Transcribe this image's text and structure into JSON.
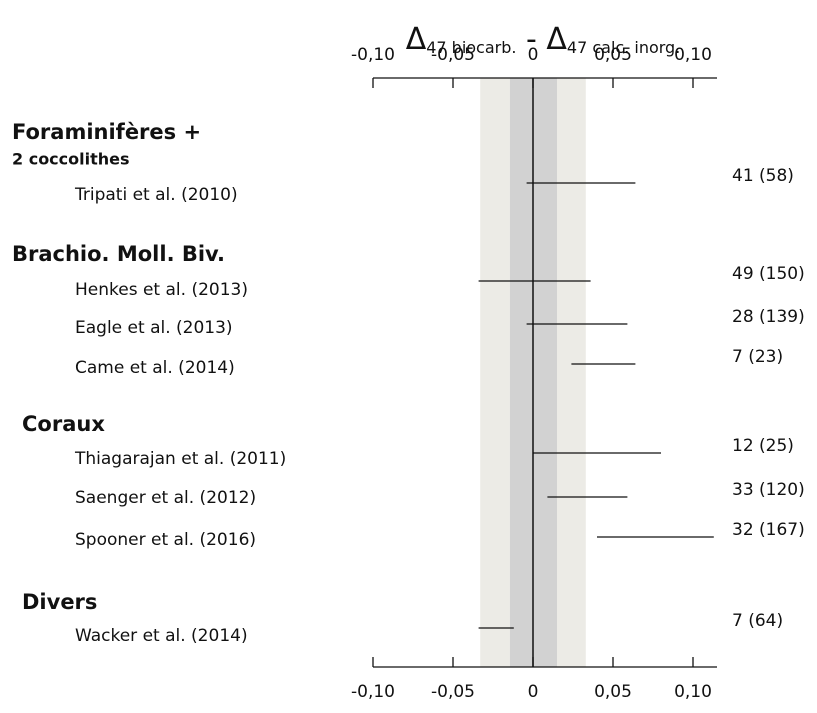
{
  "chart_data": {
    "type": "range",
    "title": {
      "symbol1": "Δ",
      "sub1": "47 biocarb.",
      "sep": " - ",
      "symbol2": "Δ",
      "sub2": "47 calc. inorg."
    },
    "xlim": [
      -0.1,
      0.115
    ],
    "xticks": [
      {
        "value": -0.1,
        "label": "-0,10"
      },
      {
        "value": -0.05,
        "label": "-0,05"
      },
      0,
      {
        "value": 0.05,
        "label": "0,05"
      },
      {
        "value": 0.1,
        "label": "0,10"
      }
    ],
    "bands": [
      {
        "range": [
          -0.033,
          0.033
        ],
        "color": "#ecebe6"
      },
      {
        "range": [
          -0.0144,
          0.015
        ],
        "color": "#d2d2d2"
      }
    ],
    "line_color": "#111111",
    "groups": [
      {
        "name": "Foraminifères +",
        "subname": "2 coccolithes",
        "studies": [
          {
            "label": "Tripati et al. (2010)",
            "low": -0.004,
            "high": 0.064,
            "n": "41 (58)"
          }
        ]
      },
      {
        "name": "Brachio. Moll. Biv.",
        "studies": [
          {
            "label": "Henkes et al. (2013)",
            "low": -0.034,
            "high": 0.036,
            "n": "49 (150)"
          },
          {
            "label": "Eagle et al. (2013)",
            "low": -0.004,
            "high": 0.059,
            "n": "28 (139)"
          },
          {
            "label": "Came et al. (2014)",
            "low": 0.024,
            "high": 0.064,
            "n": "7 (23)"
          }
        ]
      },
      {
        "name": "Coraux",
        "studies": [
          {
            "label": "Thiagarajan et al. (2011)",
            "low": 0,
            "high": 0.08,
            "n": "12 (25)"
          },
          {
            "label": "Saenger et al. (2012)",
            "low": 0.009,
            "high": 0.059,
            "n": "33 (120)"
          },
          {
            "label": "Spooner et al. (2016)",
            "low": 0.04,
            "high": 0.113,
            "n": "32 (167)"
          }
        ]
      },
      {
        "name": "Divers",
        "studies": [
          {
            "label": "Wacker et al. (2014)",
            "low": -0.034,
            "high": -0.012,
            "n": "7 (64)"
          }
        ]
      }
    ]
  }
}
